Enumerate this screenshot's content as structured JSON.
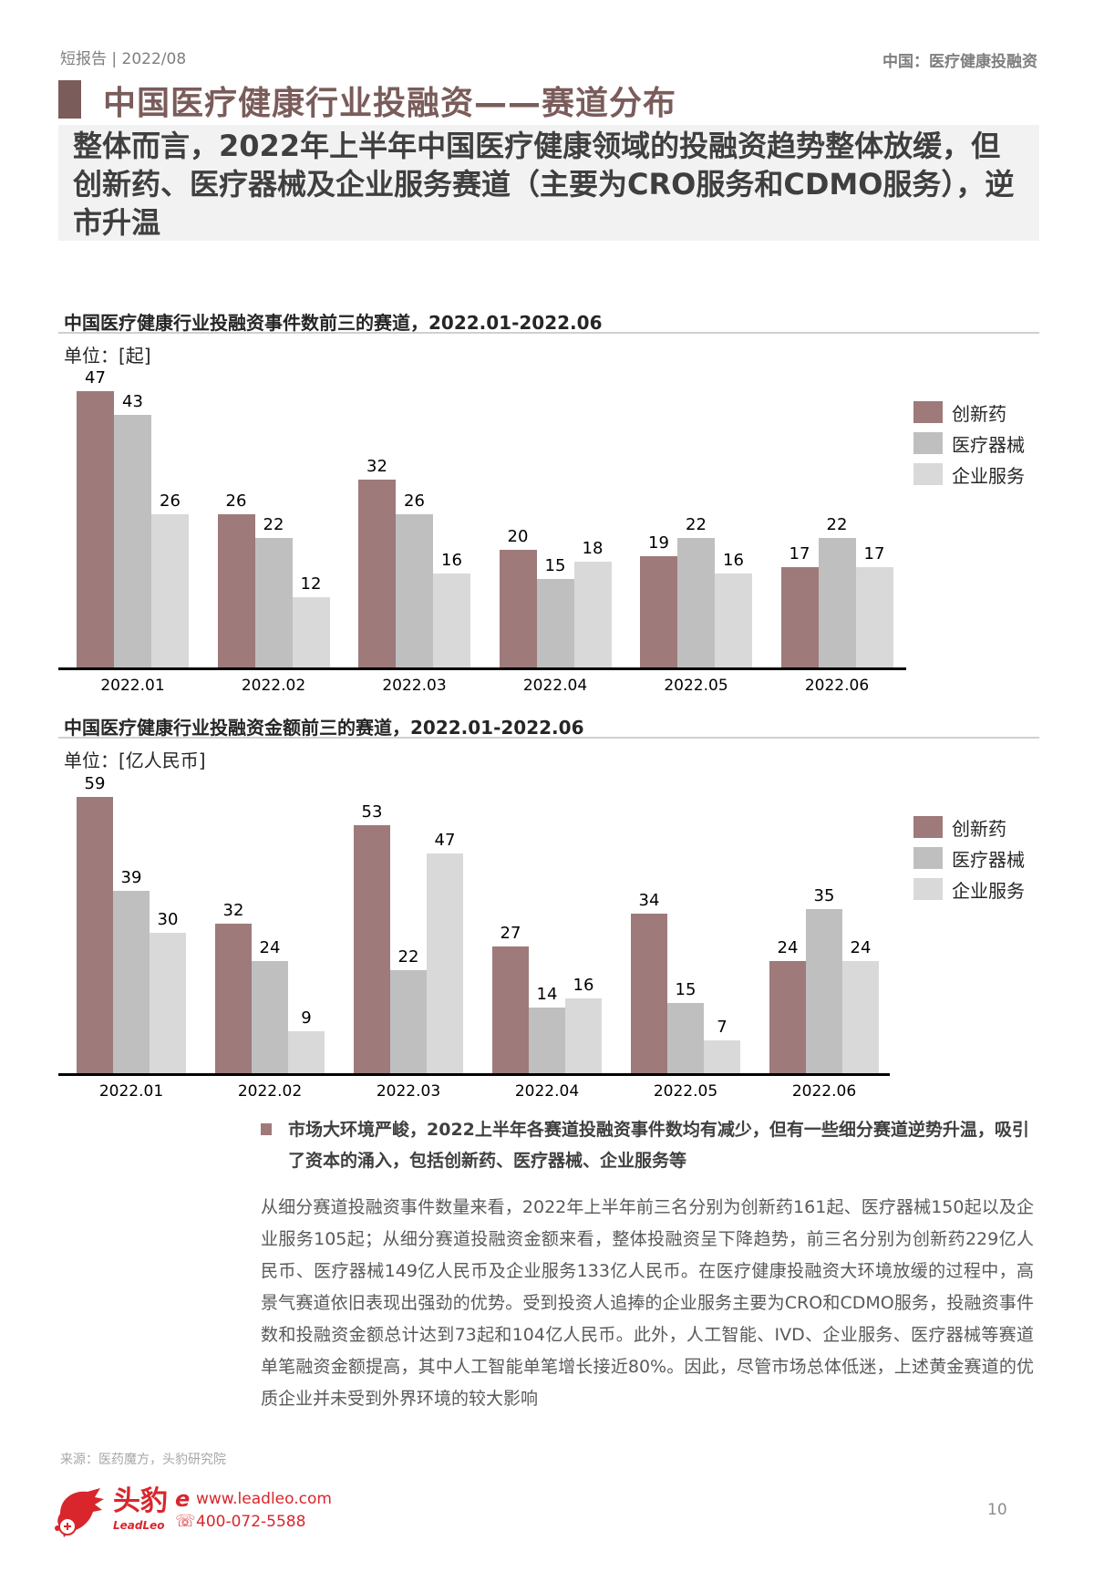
{
  "header": {
    "left": "短报告 | 2022/08",
    "right": "中国：医疗健康投融资"
  },
  "title": "中国医疗健康行业投融资——赛道分布",
  "summary": "整体而言，2022年上半年中国医疗健康领域的投融资趋势整体放缓，但创新药、医疗器械及企业服务赛道（主要为CRO服务和CDMO服务），逆市升温",
  "colors": {
    "accent": "#7a5c5a",
    "series_innovative_drugs": "#9e7a7a",
    "series_medical_devices": "#bfbfbf",
    "series_enterprise_services": "#d9d9d9"
  },
  "chart_data": [
    {
      "type": "bar",
      "title": "中国医疗健康行业投融资事件数前三的赛道，2022.01-2022.06",
      "unit_label": "单位：[起]",
      "xlabel": "",
      "ylabel": "",
      "categories": [
        "2022.01",
        "2022.02",
        "2022.03",
        "2022.04",
        "2022.05",
        "2022.06"
      ],
      "series": [
        {
          "name": "创新药",
          "values": [
            47,
            26,
            32,
            20,
            19,
            17
          ]
        },
        {
          "name": "医疗器械",
          "values": [
            43,
            22,
            26,
            15,
            22,
            22
          ]
        },
        {
          "name": "企业服务",
          "values": [
            26,
            12,
            16,
            18,
            16,
            17
          ]
        }
      ],
      "legend_position": "right",
      "grid": false,
      "data_labels": true,
      "ylim": [
        0,
        50
      ]
    },
    {
      "type": "bar",
      "title": "中国医疗健康行业投融资金额前三的赛道，2022.01-2022.06",
      "unit_label": "单位：[亿人民币]",
      "xlabel": "",
      "ylabel": "",
      "categories": [
        "2022.01",
        "2022.02",
        "2022.03",
        "2022.04",
        "2022.05",
        "2022.06"
      ],
      "series": [
        {
          "name": "创新药",
          "values": [
            59,
            32,
            53,
            27,
            34,
            24
          ]
        },
        {
          "name": "医疗器械",
          "values": [
            39,
            24,
            22,
            14,
            15,
            35
          ]
        },
        {
          "name": "企业服务",
          "values": [
            30,
            9,
            47,
            16,
            7,
            24
          ]
        }
      ],
      "legend_position": "right",
      "grid": false,
      "data_labels": true,
      "ylim": [
        0,
        62
      ]
    }
  ],
  "legend": [
    "创新药",
    "医疗器械",
    "企业服务"
  ],
  "bullet": "市场大环境严峻，2022上半年各赛道投融资事件数均有减少，但有一些细分赛道逆势升温，吸引了资本的涌入，包括创新药、医疗器械、企业服务等",
  "paragraph": "从细分赛道投融资事件数量来看，2022年上半年前三名分别为创新药161起、医疗器械150起以及企业服务105起；从细分赛道投融资金额来看，整体投融资呈下降趋势，前三名分别为创新药229亿人民币、医疗器械149亿人民币及企业服务133亿人民币。在医疗健康投融资大环境放缓的过程中，高景气赛道依旧表现出强劲的优势。受到投资人追捧的企业服务主要为CRO和CDMO服务，投融资事件数和投融资金额总计达到73起和104亿人民币。此外，人工智能、IVD、企业服务、医疗器械等赛道单笔融资金额提高，其中人工智能单笔增长接近80%。因此，尽管市场总体低迷，上述黄金赛道的优质企业并未受到外界环境的较大影响",
  "source": "来源：医药魔方，头豹研究院",
  "footer": {
    "brand_cn": "头豹",
    "brand_en": "LeadLeo",
    "website": "www.leadleo.com",
    "phone": "400-072-5588",
    "page_number": "10"
  }
}
